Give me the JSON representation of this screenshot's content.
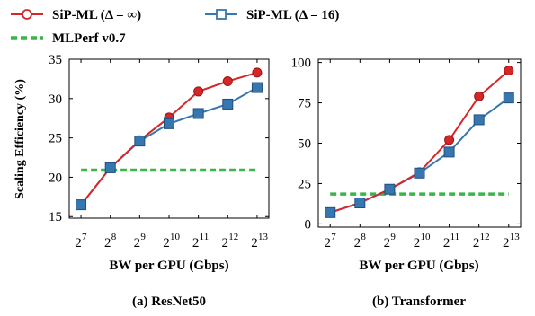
{
  "legend": {
    "entries": [
      {
        "label": "SiP-ML (Δ = ∞)",
        "color": "#d62728",
        "marker": "circle",
        "style": "solid"
      },
      {
        "label": "SiP-ML (Δ = 16)",
        "color": "#3777b0",
        "marker": "square",
        "style": "solid"
      },
      {
        "label": "MLPerf v0.7",
        "color": "#3bb44a",
        "marker": "none",
        "style": "dashed"
      }
    ]
  },
  "chart_data": [
    {
      "type": "line",
      "caption": "(a) ResNet50",
      "xlabel": "BW per GPU (Gbps)",
      "ylabel": "Scaling Efficiency (%)",
      "x": [
        7,
        8,
        9,
        10,
        11,
        12,
        13
      ],
      "x_tick_base": "2",
      "x_tick_exponents": [
        "7",
        "8",
        "9",
        "10",
        "11",
        "12",
        "13"
      ],
      "xlim": [
        6.6,
        13.4
      ],
      "ylim": [
        14.8,
        35
      ],
      "yticks": [
        15,
        20,
        25,
        30,
        35
      ],
      "ytick_labels": [
        "15",
        "20",
        "25",
        "30",
        "35"
      ],
      "grid": false,
      "series": [
        {
          "name": "SiP-ML (Δ = ∞)",
          "color": "#d62728",
          "marker": "circle",
          "values": [
            16.5,
            21.2,
            24.7,
            27.6,
            30.9,
            32.2,
            33.3
          ]
        },
        {
          "name": "SiP-ML (Δ = 16)",
          "color": "#3777b0",
          "marker": "square",
          "values": [
            16.5,
            21.2,
            24.6,
            26.8,
            28.1,
            29.3,
            31.4
          ]
        },
        {
          "name": "MLPerf v0.7",
          "color": "#3bb44a",
          "marker": "none",
          "dashed": true,
          "values": [
            20.9,
            20.9,
            20.9,
            20.9,
            20.9,
            20.9,
            20.9
          ]
        }
      ]
    },
    {
      "type": "line",
      "caption": "(b) Transformer",
      "xlabel": "BW per GPU (Gbps)",
      "ylabel": "",
      "x": [
        7,
        8,
        9,
        10,
        11,
        12,
        13
      ],
      "x_tick_base": "2",
      "x_tick_exponents": [
        "7",
        "8",
        "9",
        "10",
        "11",
        "12",
        "13"
      ],
      "xlim": [
        6.6,
        13.4
      ],
      "ylim": [
        -2,
        102
      ],
      "yticks": [
        0,
        25,
        50,
        75,
        100
      ],
      "ytick_labels": [
        "0",
        "25",
        "50",
        "75",
        "100"
      ],
      "grid": false,
      "series": [
        {
          "name": "SiP-ML (Δ = ∞)",
          "color": "#d62728",
          "marker": "circle",
          "values": [
            7,
            13,
            21.5,
            32,
            52,
            79,
            95
          ]
        },
        {
          "name": "SiP-ML (Δ = 16)",
          "color": "#3777b0",
          "marker": "square",
          "values": [
            7,
            13,
            21.5,
            31.5,
            44.5,
            64.5,
            78
          ]
        },
        {
          "name": "MLPerf v0.7",
          "color": "#3bb44a",
          "marker": "none",
          "dashed": true,
          "values": [
            18.5,
            18.5,
            18.5,
            18.5,
            18.5,
            18.5,
            18.5
          ]
        }
      ]
    }
  ]
}
